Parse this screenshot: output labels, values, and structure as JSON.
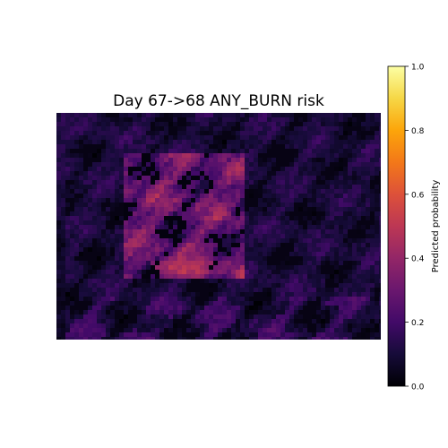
{
  "chart_data": {
    "type": "heatmap",
    "title": "Day 67->68 ANY_BURN risk",
    "xlabel": "",
    "ylabel": "",
    "axes_visible": false,
    "grid": false,
    "colormap": "inferno",
    "colorbar": {
      "label": "Predicted probability",
      "range": [
        0.0,
        1.0
      ],
      "ticks": [
        0.0,
        0.2,
        0.4,
        0.6,
        0.8,
        1.0
      ],
      "tick_labels": [
        "0.0",
        "0.2",
        "0.4",
        "0.6",
        "0.8",
        "1.0"
      ],
      "position": "right"
    },
    "regions": [
      {
        "name": "background",
        "level": 0.1
      },
      {
        "name": "left strip",
        "level": 0.06
      },
      {
        "name": "center block",
        "level": 0.3
      },
      {
        "name": "center block hotspot",
        "level": 0.5
      }
    ]
  }
}
